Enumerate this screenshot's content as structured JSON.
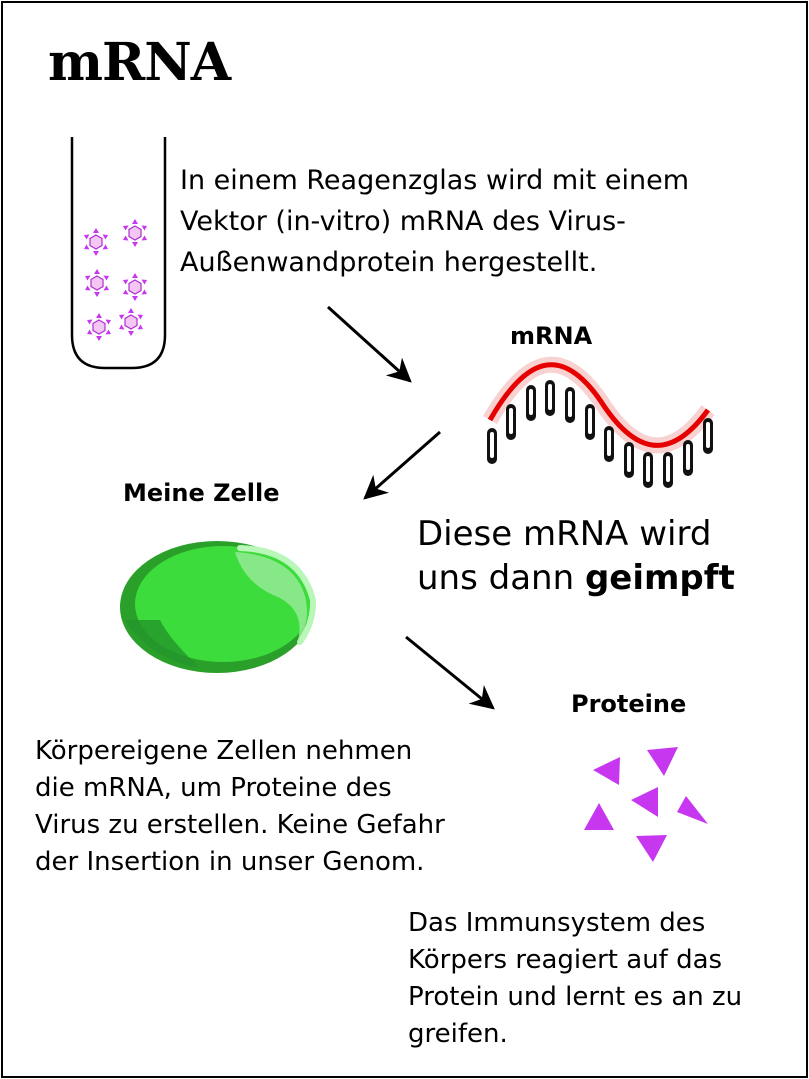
{
  "title": "mRNA",
  "intro_text": "In einem Reagenzglas wird mit einem\nVektor (in-vitro) mRNA des Virus-\nAußenwandprotein hergestellt.",
  "labels": {
    "mrna": "mRNA",
    "cell": "Meine Zelle",
    "proteins": "Proteine"
  },
  "vaccine_text": {
    "line1": "Diese mRNA wird",
    "line2_prefix": "uns dann ",
    "line2_bold": "geimpft"
  },
  "cell_text": "Körpereigene Zellen nehmen\ndie mRNA, um Proteine des\nVirus zu erstellen. Keine Gefahr\nder Insertion in unser Genom.",
  "immune_text": "Das Immunsystem des\nKörpers reagiert auf das\nProtein und lernt es an zu\ngreifen.",
  "colors": {
    "strand": "#e60000",
    "cell_dark": "#2aa02a",
    "cell_main": "#3cdc3c",
    "cell_light": "#a8f5a8",
    "protein": "#c837f0"
  }
}
